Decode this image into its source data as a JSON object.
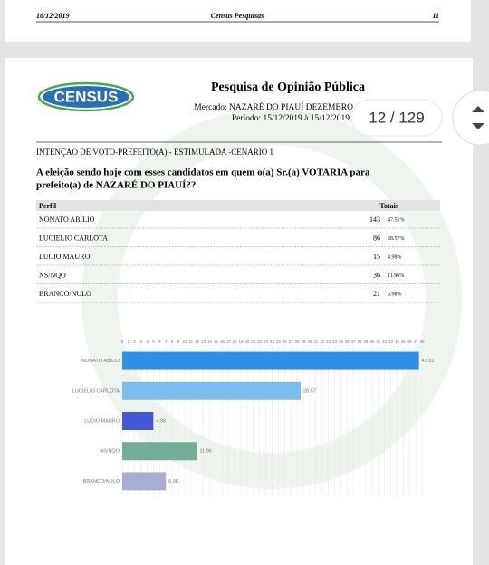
{
  "top_page": {
    "date": "16/12/2019",
    "company": "Census Pesquisas",
    "page_number": "11"
  },
  "header": {
    "logo": "CENSUS",
    "title": "Pesquisa de Opinião Pública",
    "market": "Mercado: NAZARÉ DO PIAUÍ DEZEMBRO",
    "period": "Período: 15/12/2019 à 15/12/2019"
  },
  "viewer": {
    "page_indicator": "12 / 129"
  },
  "section": "INTENÇÃO DE VOTO-PREFEITO(A) - ESTIMULADA -CENÁRIO 1",
  "question": [
    "A eleição sendo hoje com esses candidatos em quem o(a) Sr.(a) VOTARIA para",
    "prefeito(a) de NAZARÉ DO PIAUÍ??"
  ],
  "table": {
    "header": [
      "Perfil",
      "Totais"
    ],
    "rows": [
      [
        "NONATO ABÍLIO",
        143,
        "47.51%"
      ],
      [
        "LUCIELIO CARLOTA",
        86,
        "28.57%"
      ],
      [
        "LUCIO MAURO",
        15,
        "4.98%"
      ],
      [
        "NS/NQO",
        36,
        "11.96%"
      ],
      [
        "BRANCO/NULO",
        21,
        "6.98%"
      ]
    ]
  },
  "chart_data": {
    "type": "bar",
    "orientation": "horizontal",
    "categories": [
      "NONATO ABÍLIO",
      "LUCIELIO CARLOTA",
      "LUCIO MAURO",
      "NS/NQO",
      "BRANCO/NULO"
    ],
    "values": [
      47.51,
      28.57,
      4.98,
      11.96,
      6.98
    ],
    "colors": [
      "#2d8fe6",
      "#7dbdec",
      "#4457d6",
      "#72ad9a",
      "#a6aed6"
    ],
    "xlim": [
      0,
      48
    ],
    "xticks": [
      0,
      1,
      2,
      3,
      4,
      5,
      6,
      7,
      8,
      9,
      10,
      11,
      12,
      13,
      14,
      15,
      16,
      17,
      18,
      19,
      20,
      21,
      22,
      23,
      24,
      25,
      26,
      27,
      28,
      29,
      30,
      31,
      32,
      33,
      34,
      35,
      36,
      37,
      38,
      39,
      40,
      41,
      42,
      43,
      44,
      45,
      46,
      47,
      48
    ],
    "grid": true
  }
}
